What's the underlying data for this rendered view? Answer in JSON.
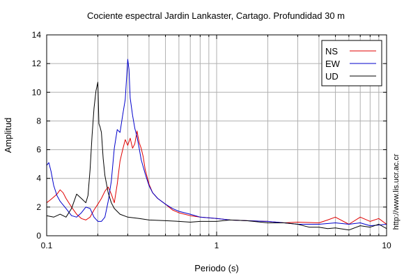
{
  "chart_data": {
    "type": "line",
    "title": "Cociente espectral Jardin Lankaster, Cartago. Profundidad 30 m",
    "xlabel": "Periodo (s)",
    "ylabel": "Amplitud",
    "x_scale": "log",
    "xlim": [
      0.1,
      10
    ],
    "ylim": [
      0,
      14
    ],
    "x_ticks": [
      0.1,
      1,
      10
    ],
    "x_tick_labels": [
      "0.1",
      "1",
      "10"
    ],
    "y_ticks": [
      0,
      2,
      4,
      6,
      8,
      10,
      12,
      14
    ],
    "y_tick_labels": [
      "0",
      "2",
      "4",
      "6",
      "8",
      "10",
      "12",
      "14"
    ],
    "grid": true,
    "legend_position": "top-right",
    "watermark": "http://www.lis.ucr.ac.cr",
    "series": [
      {
        "name": "NS",
        "color": "#e00000",
        "x": [
          0.1,
          0.105,
          0.11,
          0.115,
          0.12,
          0.125,
          0.13,
          0.14,
          0.15,
          0.16,
          0.17,
          0.18,
          0.19,
          0.2,
          0.21,
          0.22,
          0.23,
          0.24,
          0.25,
          0.26,
          0.27,
          0.28,
          0.29,
          0.3,
          0.31,
          0.32,
          0.33,
          0.34,
          0.35,
          0.36,
          0.37,
          0.38,
          0.4,
          0.42,
          0.45,
          0.5,
          0.55,
          0.6,
          0.7,
          0.8,
          1.0,
          1.2,
          1.5,
          2.0,
          2.5,
          3.0,
          4.0,
          4.5,
          5.0,
          6.0,
          7.0,
          8.0,
          9.0,
          10.0
        ],
        "y": [
          2.3,
          2.5,
          2.7,
          2.9,
          3.2,
          3.0,
          2.6,
          2.0,
          1.5,
          1.2,
          1.1,
          1.3,
          1.8,
          2.2,
          2.6,
          3.1,
          3.4,
          2.9,
          2.3,
          3.6,
          5.2,
          6.0,
          6.7,
          6.3,
          6.8,
          6.1,
          6.4,
          7.3,
          6.5,
          6.1,
          5.5,
          4.6,
          3.6,
          3.0,
          2.6,
          2.2,
          1.8,
          1.6,
          1.4,
          1.3,
          1.2,
          1.1,
          1.05,
          1.0,
          0.9,
          0.95,
          0.9,
          1.1,
          1.3,
          0.8,
          1.3,
          1.0,
          1.2,
          0.8
        ]
      },
      {
        "name": "EW",
        "color": "#0000cc",
        "x": [
          0.1,
          0.103,
          0.106,
          0.11,
          0.115,
          0.12,
          0.13,
          0.14,
          0.15,
          0.16,
          0.17,
          0.18,
          0.19,
          0.2,
          0.21,
          0.22,
          0.23,
          0.24,
          0.25,
          0.26,
          0.27,
          0.28,
          0.29,
          0.295,
          0.3,
          0.305,
          0.31,
          0.32,
          0.33,
          0.34,
          0.35,
          0.36,
          0.38,
          0.4,
          0.42,
          0.45,
          0.5,
          0.55,
          0.6,
          0.7,
          0.8,
          1.0,
          1.2,
          1.5,
          2.0,
          2.5,
          3.0,
          4.0,
          5.0,
          6.0,
          7.0,
          8.0,
          9.0,
          10.0
        ],
        "y": [
          4.9,
          5.1,
          4.5,
          3.5,
          2.8,
          2.4,
          1.9,
          1.4,
          1.3,
          1.6,
          2.0,
          1.9,
          1.3,
          1.0,
          1.0,
          1.3,
          2.4,
          3.8,
          6.1,
          7.4,
          7.2,
          8.4,
          9.5,
          10.9,
          12.3,
          11.6,
          9.6,
          8.4,
          7.5,
          6.9,
          6.1,
          5.3,
          4.3,
          3.5,
          3.0,
          2.6,
          2.2,
          1.9,
          1.7,
          1.5,
          1.3,
          1.2,
          1.1,
          1.05,
          1.0,
          0.9,
          0.8,
          0.8,
          0.9,
          0.8,
          0.9,
          0.7,
          0.75,
          0.8
        ]
      },
      {
        "name": "UD",
        "color": "#000000",
        "x": [
          0.1,
          0.11,
          0.12,
          0.13,
          0.14,
          0.15,
          0.16,
          0.17,
          0.175,
          0.18,
          0.185,
          0.19,
          0.195,
          0.2,
          0.203,
          0.206,
          0.21,
          0.215,
          0.22,
          0.23,
          0.24,
          0.25,
          0.27,
          0.3,
          0.35,
          0.4,
          0.5,
          0.6,
          0.7,
          0.8,
          1.0,
          1.2,
          1.5,
          2.0,
          2.5,
          3.0,
          3.5,
          4.0,
          4.5,
          5.0,
          6.0,
          7.0,
          8.0,
          9.0,
          10.0
        ],
        "y": [
          1.4,
          1.3,
          1.5,
          1.3,
          1.9,
          2.9,
          2.6,
          2.3,
          2.8,
          4.6,
          7.0,
          8.9,
          10.1,
          10.7,
          7.8,
          7.6,
          7.2,
          5.4,
          4.2,
          3.0,
          2.3,
          1.9,
          1.5,
          1.3,
          1.2,
          1.1,
          1.05,
          1.0,
          0.95,
          1.0,
          1.0,
          1.1,
          1.05,
          0.9,
          0.9,
          0.8,
          0.6,
          0.6,
          0.5,
          0.55,
          0.4,
          0.7,
          0.6,
          0.8,
          0.5
        ]
      }
    ]
  }
}
